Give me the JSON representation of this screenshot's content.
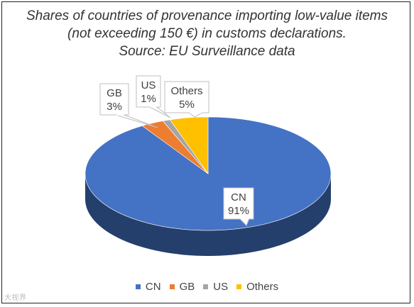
{
  "chart_data": {
    "type": "pie",
    "title_lines": [
      "Shares of countries of provenance importing low-value items",
      "(not exceeding 150 €) in customs declarations.",
      "Source: EU Surveillance data"
    ],
    "categories": [
      "CN",
      "GB",
      "US",
      "Others"
    ],
    "values": [
      91,
      3,
      1,
      5
    ],
    "labels": [
      "91%",
      "3%",
      "1%",
      "5%"
    ],
    "colors": [
      "#4472C4",
      "#ED7D31",
      "#A5A5A5",
      "#FFC000"
    ],
    "legend_position": "bottom",
    "style": "3d"
  },
  "watermark": "大视界"
}
